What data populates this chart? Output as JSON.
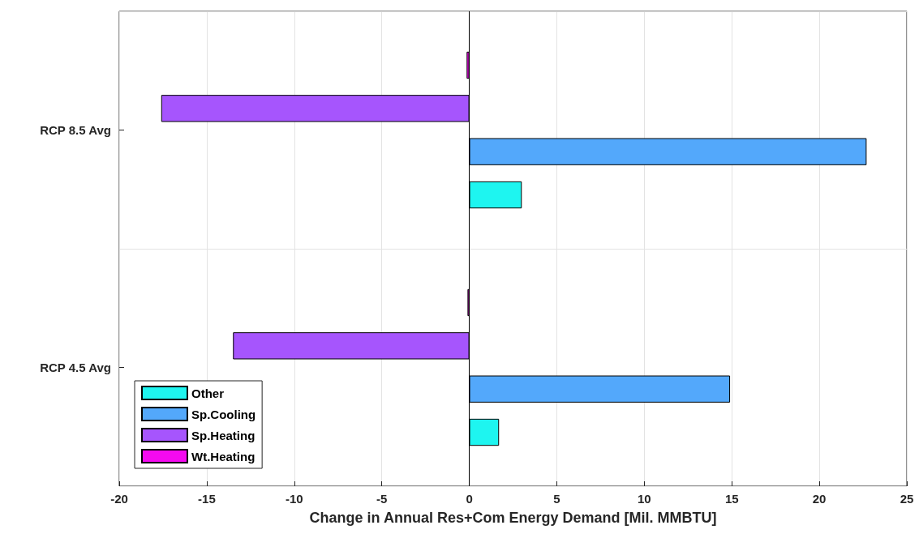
{
  "chart_data": {
    "type": "bar",
    "orientation": "horizontal",
    "xlabel": "Change in Annual Res+Com Energy Demand [Mil. MMBTU]",
    "categories": [
      "RCP 8.5 Avg",
      "RCP 4.5 Avg"
    ],
    "series": [
      {
        "name": "Other",
        "color": "#1ef5f0",
        "values": [
          3.0,
          1.7
        ]
      },
      {
        "name": "Sp.Cooling",
        "color": "#53a8fb",
        "values": [
          22.7,
          14.9
        ]
      },
      {
        "name": "Sp.Heating",
        "color": "#a655fd",
        "values": [
          -17.6,
          -13.5
        ]
      },
      {
        "name": "Wt.Heating",
        "color": "#f50af0",
        "values": [
          -0.15,
          -0.1
        ]
      }
    ],
    "xlim": [
      -20,
      25
    ],
    "xticks": [
      -20,
      -15,
      -10,
      -5,
      0,
      5,
      10,
      15,
      20,
      25
    ],
    "ref_lines": [
      {
        "axis": "x",
        "value": 0,
        "color": "#000000"
      }
    ],
    "grid": true,
    "legend": "bottom left"
  }
}
